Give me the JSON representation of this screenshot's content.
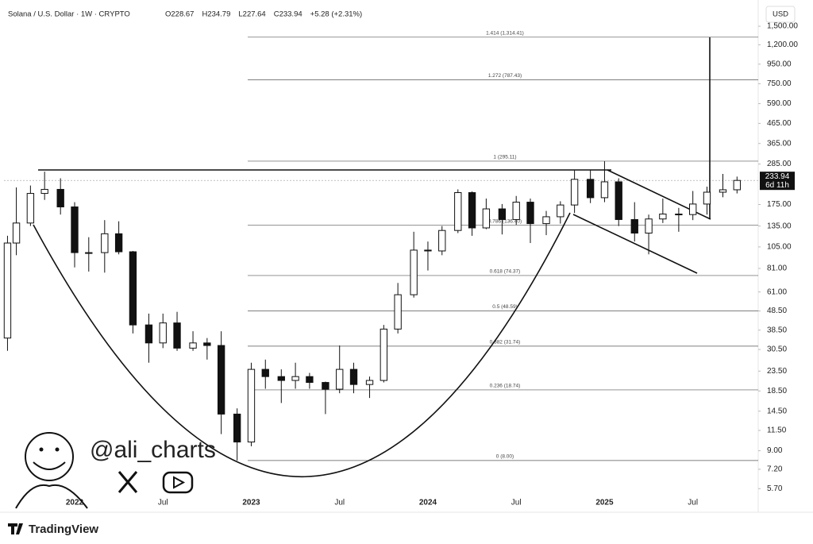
{
  "chart_data": {
    "type": "candlestick",
    "title": "Solana / U.S. Dollar · 1W · CRYPTO",
    "ohlc_legend": [
      "O228.67",
      "H234.79",
      "L227.64",
      "C233.94",
      "+5.28 (+2.31%)"
    ],
    "currency": "USD",
    "watermark": "@ali_charts",
    "brand": "TradingView",
    "log_scale": true,
    "up_color": "#ffffff",
    "down_color": "#111111",
    "x": [
      2021.62,
      2021.67,
      2021.75,
      2021.83,
      2021.92,
      2022.0,
      2022.08,
      2022.17,
      2022.25,
      2022.33,
      2022.42,
      2022.5,
      2022.58,
      2022.67,
      2022.75,
      2022.83,
      2022.92,
      2023.0,
      2023.08,
      2023.17,
      2023.25,
      2023.33,
      2023.42,
      2023.5,
      2023.58,
      2023.67,
      2023.75,
      2023.83,
      2023.92,
      2024.0,
      2024.08,
      2024.17,
      2024.25,
      2024.33,
      2024.42,
      2024.5,
      2024.58,
      2024.67,
      2024.75,
      2024.83,
      2024.92,
      2025.0,
      2025.08,
      2025.17,
      2025.25,
      2025.33,
      2025.42,
      2025.5,
      2025.58,
      2025.67,
      2025.75
    ],
    "open": [
      35,
      110,
      140,
      200,
      210,
      170,
      98,
      98,
      123,
      99,
      41,
      33,
      42,
      31,
      33,
      32,
      14,
      10,
      24,
      22,
      21,
      22,
      20.5,
      18.9,
      24,
      20,
      21,
      39,
      59,
      101,
      100,
      128,
      202,
      132,
      166,
      146,
      180,
      139,
      151,
      174,
      237,
      190,
      230,
      146,
      124,
      147,
      156,
      155,
      176,
      203,
      209
    ],
    "high": [
      120,
      215,
      220,
      260,
      240,
      180,
      118,
      145,
      143,
      100,
      47,
      47,
      48,
      38,
      35,
      38,
      15,
      26,
      27,
      24,
      26,
      23,
      20.7,
      32,
      26,
      22,
      41,
      68,
      126,
      112,
      135,
      210,
      205,
      188,
      176,
      194,
      188,
      162,
      182,
      264,
      265,
      295,
      240,
      180,
      155,
      188,
      168,
      206,
      217,
      253,
      245
    ],
    "low": [
      30,
      95,
      135,
      185,
      155,
      82,
      78,
      77,
      96,
      37,
      26,
      31,
      30,
      30,
      27,
      11,
      8,
      9.5,
      19,
      16,
      19,
      19,
      14,
      18,
      18,
      17,
      20.5,
      37,
      57,
      79,
      95,
      124,
      120,
      130,
      122,
      137,
      110,
      121,
      139,
      158,
      178,
      180,
      135,
      112,
      96,
      140,
      126,
      145,
      155,
      191,
      200
    ],
    "close": [
      110,
      140,
      200,
      210,
      170,
      98,
      98,
      123,
      99,
      41,
      33,
      42,
      31,
      33,
      32,
      14,
      10,
      24,
      22,
      21,
      22,
      20.5,
      18.9,
      24,
      20,
      21,
      39,
      59,
      101,
      100,
      128,
      202,
      132,
      166,
      146,
      180,
      139,
      151,
      174,
      237,
      190,
      230,
      146,
      124,
      147,
      156,
      155,
      176,
      203,
      209,
      233.94
    ],
    "xlim": [
      2021.6,
      2025.87
    ],
    "xticks": [
      {
        "value": 2022,
        "label": "2022"
      },
      {
        "value": 2022.5,
        "label": "Jul"
      },
      {
        "value": 2023,
        "label": "2023"
      },
      {
        "value": 2023.5,
        "label": "Jul"
      },
      {
        "value": 2024,
        "label": "2024"
      },
      {
        "value": 2024.5,
        "label": "Jul"
      },
      {
        "value": 2025,
        "label": "2025"
      },
      {
        "value": 2025.5,
        "label": "Jul"
      }
    ],
    "ylim": [
      4.5,
      1870
    ],
    "yticks": [
      {
        "value": 1500,
        "label": "1,500.00"
      },
      {
        "value": 1200,
        "label": "1,200.00"
      },
      {
        "value": 950,
        "label": "950.00"
      },
      {
        "value": 750,
        "label": "750.00"
      },
      {
        "value": 590,
        "label": "590.00"
      },
      {
        "value": 465,
        "label": "465.00"
      },
      {
        "value": 365,
        "label": "365.00"
      },
      {
        "value": 285,
        "label": "285.00"
      },
      {
        "value": 175,
        "label": "175.00"
      },
      {
        "value": 135,
        "label": "135.00"
      },
      {
        "value": 105,
        "label": "105.00"
      },
      {
        "value": 81,
        "label": "81.00"
      },
      {
        "value": 61,
        "label": "61.00"
      },
      {
        "value": 48.5,
        "label": "48.50"
      },
      {
        "value": 38.5,
        "label": "38.50"
      },
      {
        "value": 30.5,
        "label": "30.50"
      },
      {
        "value": 23.5,
        "label": "23.50"
      },
      {
        "value": 18.5,
        "label": "18.50"
      },
      {
        "value": 14.5,
        "label": "14.50"
      },
      {
        "value": 11.5,
        "label": "11.50"
      },
      {
        "value": 9,
        "label": "9.00"
      },
      {
        "value": 7.2,
        "label": "7.20"
      },
      {
        "value": 5.7,
        "label": "5.70"
      }
    ],
    "fib_levels": [
      {
        "value": 1314.41,
        "label": "1.414 (1,314.41)"
      },
      {
        "value": 787.43,
        "label": "1.272 (787.43)"
      },
      {
        "value": 295.11,
        "label": "1 (295.11)"
      },
      {
        "value": 136.4,
        "label": "0.786 (136.40)"
      },
      {
        "value": 74.37,
        "label": "0.618 (74.37)"
      },
      {
        "value": 48.59,
        "label": "0.5 (48.59)"
      },
      {
        "value": 31.74,
        "label": "0.382 (31.74)"
      },
      {
        "value": 18.74,
        "label": "0.236 (18.74)"
      },
      {
        "value": 8.0,
        "label": "0 (8.00)"
      }
    ],
    "last_price": {
      "value": 233.94,
      "label": "233.94"
    },
    "countdown": "6d 11h"
  }
}
